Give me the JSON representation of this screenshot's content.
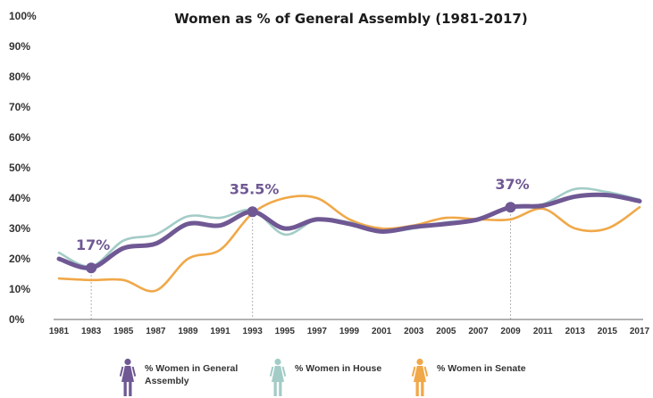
{
  "chart_data": {
    "type": "line",
    "title": "Women as % of General Assembly (1981-2017)",
    "xlabel": "",
    "ylabel": "",
    "x_ticks": [
      "1981",
      "1983",
      "1985",
      "1987",
      "1989",
      "1991",
      "1993",
      "1995",
      "1997",
      "1999",
      "2001",
      "2003",
      "2005",
      "2007",
      "2009",
      "2011",
      "2013",
      "2015",
      "2017"
    ],
    "y_ticks": [
      "0%",
      "10%",
      "20%",
      "30%",
      "40%",
      "50%",
      "60%",
      "70%",
      "80%",
      "90%",
      "100%"
    ],
    "ylim": [
      0,
      100
    ],
    "xlim": [
      1981,
      2017
    ],
    "grid": false,
    "legend_position": "bottom",
    "series": [
      {
        "name": "% Women in Senate",
        "color": "#f0a848",
        "x": [
          1981,
          1983,
          1985,
          1987,
          1989,
          1991,
          1993,
          1995,
          1997,
          1999,
          2001,
          2003,
          2005,
          2007,
          2009,
          2011,
          2013,
          2015,
          2017
        ],
        "values": [
          13.5,
          13,
          13,
          9.5,
          20,
          23,
          35,
          40,
          40,
          33,
          30,
          31,
          33.5,
          33,
          33,
          36.5,
          30,
          30,
          37
        ]
      },
      {
        "name": "% Women in House",
        "color": "#a3ccc7",
        "x": [
          1981,
          1983,
          1985,
          1987,
          1989,
          1991,
          1993,
          1995,
          1997,
          1999,
          2001,
          2003,
          2005,
          2007,
          2009,
          2011,
          2013,
          2015,
          2017
        ],
        "values": [
          22,
          17.5,
          26,
          28,
          34,
          33.5,
          36,
          28,
          33,
          32,
          29,
          30,
          32,
          33,
          37,
          38,
          43,
          42,
          39.5
        ]
      },
      {
        "name": "% Women in General Assembly",
        "color": "#6f5893",
        "x": [
          1981,
          1983,
          1985,
          1987,
          1989,
          1991,
          1993,
          1995,
          1997,
          1999,
          2001,
          2003,
          2005,
          2007,
          2009,
          2011,
          2013,
          2015,
          2017
        ],
        "values": [
          20,
          17,
          23.5,
          25,
          31.5,
          31,
          35.5,
          30,
          33,
          31.5,
          29,
          30.5,
          31.5,
          33,
          37,
          37.5,
          40.5,
          41,
          39
        ]
      }
    ],
    "annotations": [
      {
        "x": 1983,
        "y": 17,
        "label": "17%"
      },
      {
        "x": 1993,
        "y": 35.5,
        "label": "35.5%"
      },
      {
        "x": 2009,
        "y": 37,
        "label": "37%"
      }
    ],
    "legend": [
      {
        "label_lines": [
          "% Women in General",
          "Assembly"
        ],
        "color": "#6f5893",
        "icon": "woman-figure-icon"
      },
      {
        "label_lines": [
          "% Women in House"
        ],
        "color": "#a3ccc7",
        "icon": "woman-figure-icon"
      },
      {
        "label_lines": [
          "% Women in Senate"
        ],
        "color": "#f0a848",
        "icon": "woman-figure-icon"
      }
    ]
  }
}
